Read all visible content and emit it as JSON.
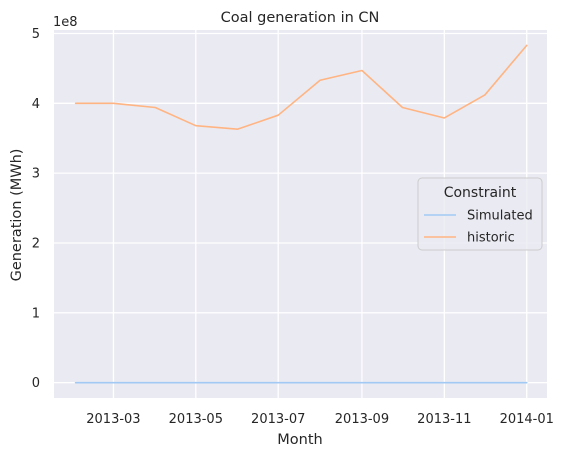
{
  "chart_data": {
    "type": "line",
    "title": "Coal generation in CN",
    "xlabel": "Month",
    "ylabel": "Generation (MWh)",
    "y_offset_text": "1e8",
    "x": [
      "2013-02-01",
      "2013-03-01",
      "2013-04-01",
      "2013-05-01",
      "2013-06-01",
      "2013-07-01",
      "2013-08-01",
      "2013-09-01",
      "2013-10-01",
      "2013-11-01",
      "2013-12-01",
      "2014-01-01"
    ],
    "x_ticks": [
      "2013-03",
      "2013-05",
      "2013-07",
      "2013-09",
      "2013-11",
      "2014-01"
    ],
    "y_ticks": [
      "0",
      "1",
      "2",
      "3",
      "4",
      "5"
    ],
    "ylim": [
      -0.22,
      5.05
    ],
    "xlim": [
      "2013-01-16",
      "2014-01-16"
    ],
    "grid": true,
    "legend": {
      "title": "Constraint",
      "placement": "right"
    },
    "series": [
      {
        "name": "Simulated",
        "color": "#a1c9f4",
        "values": [
          0,
          0,
          0,
          0,
          0,
          0,
          0,
          0,
          0,
          0,
          0,
          0
        ]
      },
      {
        "name": "historic",
        "color": "#ffb482",
        "values": [
          4.0,
          4.0,
          3.94,
          3.68,
          3.63,
          3.83,
          4.33,
          4.47,
          3.94,
          3.79,
          4.12,
          4.83
        ]
      }
    ]
  }
}
